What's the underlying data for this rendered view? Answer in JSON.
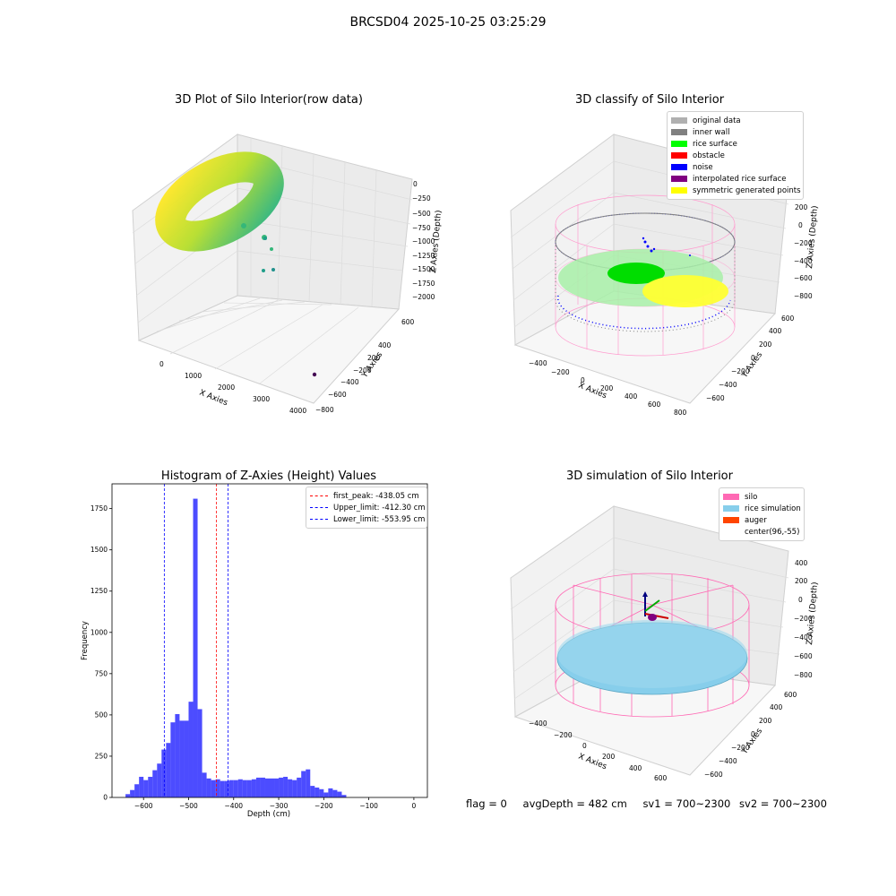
{
  "page": {
    "suptitle": "BRCSD04 2025-10-25 03:25:29"
  },
  "panel1": {
    "title": "3D Plot of Silo Interior(row data)",
    "xlabel": "X Axies",
    "ylabel": "Y Axies",
    "zlabel": "Z Axies (Depth)",
    "xticks": [
      "0",
      "1000",
      "2000",
      "3000",
      "4000"
    ],
    "yticks": [
      "600",
      "400",
      "200",
      "−200",
      "−400",
      "−600",
      "−800"
    ],
    "zticks": [
      "0",
      "−250",
      "−500",
      "−750",
      "−1000",
      "−1250",
      "−1500",
      "−1750",
      "−2000"
    ]
  },
  "panel2": {
    "title": "3D classify of Silo Interior",
    "xlabel": "X Axies",
    "ylabel": "Y Axies",
    "zlabel": "Z Axies (Depth)",
    "xticks": [
      "−400",
      "−200",
      "0",
      "200",
      "400",
      "600",
      "800"
    ],
    "yticks": [
      "600",
      "400",
      "200",
      "0",
      "−200",
      "−400",
      "−600"
    ],
    "zticks": [
      "200",
      "0",
      "−200",
      "−400",
      "−600",
      "−800"
    ],
    "legend": [
      {
        "label": "original data",
        "color": "#b0b0b0"
      },
      {
        "label": "inner wall",
        "color": "#808080"
      },
      {
        "label": "rice surface",
        "color": "#00ff00"
      },
      {
        "label": "obstacle",
        "color": "#ff0000"
      },
      {
        "label": "noise",
        "color": "#0000ff"
      },
      {
        "label": "interpolated rice surface",
        "color": "#800080"
      },
      {
        "label": "symmetric generated points",
        "color": "#ffff00"
      }
    ]
  },
  "panel4": {
    "title": "3D simulation of Silo Interior",
    "xlabel": "X Axies",
    "ylabel": "Y Axies",
    "zlabel": "Z Axies (Depth)",
    "xticks": [
      "−400",
      "−200",
      "0",
      "200",
      "400",
      "600"
    ],
    "yticks": [
      "600",
      "400",
      "200",
      "0",
      "−200",
      "−400",
      "−600"
    ],
    "zticks": [
      "400",
      "200",
      "0",
      "−200",
      "−400",
      "−600",
      "−800"
    ],
    "legend": [
      {
        "label": "silo",
        "color": "#ff69b4"
      },
      {
        "label": "rice simulation",
        "color": "#87ceeb"
      },
      {
        "label": "auger",
        "color": "#ff4500"
      },
      {
        "label": "center(96,-55)",
        "color": "#ffffff"
      }
    ]
  },
  "status": {
    "flag": "flag = 0",
    "avg": "avgDepth = 482 cm",
    "sv1": "sv1 = 700~2300",
    "sv2": "sv2 = 700~2300"
  },
  "chart_data": [
    {
      "type": "bar",
      "title": "Histogram of Z-Axies (Height) Values",
      "xlabel": "Depth (cm)",
      "ylabel": "Frequency",
      "xlim": [
        -670,
        30
      ],
      "ylim": [
        0,
        1900
      ],
      "xticks": [
        -600,
        -500,
        -400,
        -300,
        -200,
        -100,
        0
      ],
      "yticks": [
        0,
        250,
        500,
        750,
        1000,
        1250,
        1500,
        1750
      ],
      "bar_color": "#0000ff",
      "bin_width": 10,
      "bins_start": [
        -640,
        -630,
        -620,
        -610,
        -600,
        -590,
        -580,
        -570,
        -560,
        -550,
        -540,
        -530,
        -520,
        -510,
        -500,
        -490,
        -480,
        -470,
        -460,
        -450,
        -440,
        -430,
        -420,
        -410,
        -400,
        -390,
        -380,
        -370,
        -360,
        -350,
        -340,
        -330,
        -320,
        -310,
        -300,
        -290,
        -280,
        -270,
        -260,
        -250,
        -240,
        -230,
        -220,
        -210,
        -200,
        -190,
        -180,
        -170,
        -160,
        -150,
        -140,
        -130,
        -120,
        -110,
        -100,
        -90,
        -80,
        -70,
        -60,
        -50,
        -40,
        -30,
        -20,
        -10
      ],
      "values": [
        20,
        45,
        80,
        125,
        105,
        125,
        165,
        205,
        290,
        330,
        455,
        505,
        465,
        465,
        580,
        1810,
        535,
        150,
        115,
        105,
        110,
        100,
        100,
        105,
        105,
        110,
        105,
        105,
        110,
        120,
        120,
        115,
        115,
        115,
        120,
        125,
        110,
        105,
        120,
        160,
        170,
        70,
        60,
        50,
        30,
        55,
        45,
        35,
        15,
        0,
        0,
        0,
        0,
        0,
        0,
        0,
        0,
        0,
        0,
        0,
        0,
        0,
        0,
        0
      ],
      "lines": [
        {
          "label": "first_peak: -438.05 cm",
          "x": -438.05,
          "color": "#ff0000"
        },
        {
          "label": "Upper_limit: -412.30 cm",
          "x": -412.3,
          "color": "#0000ff"
        },
        {
          "label": "Lower_limit: -553.95 cm",
          "x": -553.95,
          "color": "#0000ff"
        }
      ],
      "legend_position": "upper right"
    }
  ]
}
